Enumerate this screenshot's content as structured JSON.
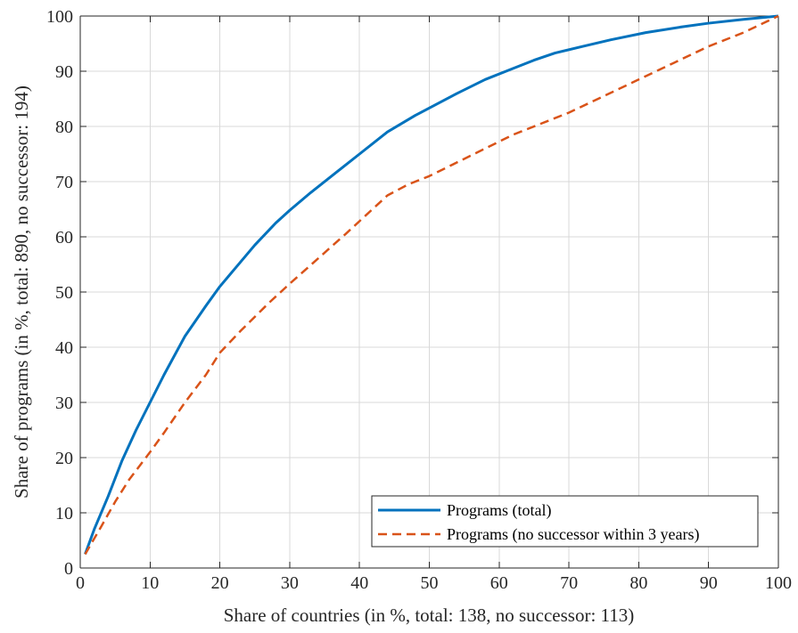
{
  "chart_data": {
    "type": "line",
    "title": "",
    "xlabel": "Share of countries (in %, total: 138, no successor: 113)",
    "ylabel": "Share of programs (in %, total: 890, no successor: 194)",
    "xlim": [
      0,
      100
    ],
    "ylim": [
      0,
      100
    ],
    "xticks": [
      "0",
      "10",
      "20",
      "30",
      "40",
      "50",
      "60",
      "70",
      "80",
      "90",
      "100"
    ],
    "yticks": [
      "0",
      "10",
      "20",
      "30",
      "40",
      "50",
      "60",
      "70",
      "80",
      "90",
      "100"
    ],
    "grid": true,
    "legend_position": "bottom-right",
    "series": [
      {
        "name": "Programs (total)",
        "color": "#0072BD",
        "style": "solid",
        "x": [
          0.7,
          2,
          4,
          6,
          8,
          10,
          12,
          15,
          18,
          20,
          22,
          25,
          28,
          30,
          33,
          37,
          40,
          44,
          48,
          50.7,
          54,
          58,
          62,
          65,
          68,
          72,
          76,
          81,
          86,
          90,
          95,
          100
        ],
        "y": [
          2.5,
          7,
          13,
          19.5,
          25,
          30,
          35,
          42,
          47.5,
          51,
          54,
          58.5,
          62.5,
          64.8,
          68,
          72,
          75,
          79,
          82,
          83.8,
          86,
          88.5,
          90.5,
          92,
          93.3,
          94.5,
          95.7,
          97,
          98,
          98.7,
          99.4,
          100
        ]
      },
      {
        "name": "Programs (no successor within 3 years)",
        "color": "#D95319",
        "style": "dashed",
        "x": [
          0.7,
          3,
          5,
          7,
          10,
          12,
          15,
          18,
          20,
          23,
          27,
          30,
          34,
          38,
          41,
          44,
          47,
          50,
          54,
          58,
          62,
          66,
          70,
          75,
          80,
          85,
          90,
          95,
          100
        ],
        "y": [
          2.5,
          7.5,
          12,
          16,
          21,
          24.5,
          30,
          35,
          39,
          43,
          48,
          51.5,
          56,
          60.5,
          64,
          67.5,
          69.5,
          71,
          73.5,
          76,
          78.5,
          80.5,
          82.5,
          85.5,
          88.5,
          91.5,
          94.5,
          97,
          100
        ]
      }
    ]
  }
}
